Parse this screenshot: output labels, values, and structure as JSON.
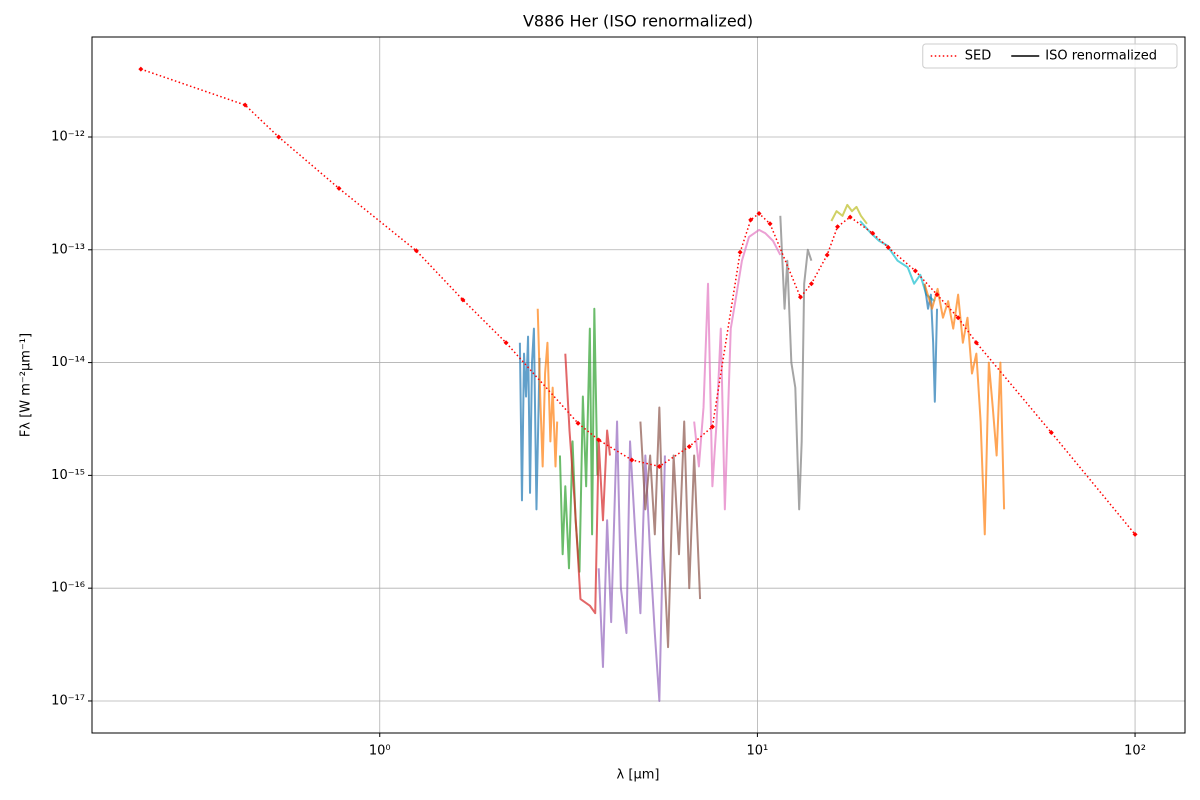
{
  "chart_data": {
    "type": "line",
    "title": "V886 Her (ISO renormalized)",
    "x_label": "λ [μm]",
    "y_label": "Fλ [W m⁻²μm⁻¹]",
    "x_scale": "log",
    "y_scale": "log",
    "grid": true,
    "legend_loc": "upper right",
    "xlim": [
      0.173,
      135.6
    ],
    "ylim": [
      5.2e-18,
      7.7e-12
    ],
    "xticks": [
      {
        "value": 1,
        "label": "10⁰"
      },
      {
        "value": 10,
        "label": "10¹"
      },
      {
        "value": 100,
        "label": "10²"
      }
    ],
    "yticks": [
      {
        "value": 1e-17,
        "label": "10⁻¹⁷"
      },
      {
        "value": 1e-16,
        "label": "10⁻¹⁶"
      },
      {
        "value": 1e-15,
        "label": "10⁻¹⁵"
      },
      {
        "value": 1e-14,
        "label": "10⁻¹⁴"
      },
      {
        "value": 1e-13,
        "label": "10⁻¹³"
      },
      {
        "value": 1e-12,
        "label": "10⁻¹²"
      }
    ],
    "series": [
      {
        "name": "SED",
        "color": "#ff0000",
        "style": "dotted",
        "x": [
          0.233,
          0.44,
          0.54,
          0.78,
          1.25,
          1.66,
          2.16,
          3.35,
          3.8,
          4.65,
          5.5,
          6.6,
          7.6,
          9.0,
          9.6,
          10.1,
          10.8,
          13.0,
          13.9,
          15.3,
          16.3,
          17.6,
          20.2,
          22.2,
          26.2,
          29.9,
          34.0,
          38.0,
          60,
          100
        ],
        "values": [
          4e-12,
          1.92e-12,
          1e-12,
          3.5e-13,
          9.8e-14,
          3.6e-14,
          1.5e-14,
          2.9e-15,
          2.06e-15,
          1.37e-15,
          1.2e-15,
          1.8e-15,
          2.7e-15,
          9.5e-14,
          1.84e-13,
          2.1e-13,
          1.7e-13,
          3.8e-14,
          5e-14,
          9e-14,
          1.6e-13,
          1.95e-13,
          1.4e-13,
          1.05e-13,
          6.5e-14,
          4e-14,
          2.5e-14,
          1.5e-14,
          2.4e-15,
          3e-16
        ]
      },
      {
        "name": "ISO renormalized",
        "color": "#000000",
        "style": "solid",
        "x": [],
        "values": []
      }
    ],
    "segments": [
      {
        "color": "#1f77b4",
        "x": [
          2.35,
          2.38,
          2.41,
          2.44,
          2.47,
          2.5,
          2.53,
          2.56,
          2.6,
          2.65
        ],
        "values": [
          1.5e-14,
          6e-16,
          1.2e-14,
          5e-15,
          1.7e-14,
          7e-16,
          1e-14,
          2e-14,
          5e-16,
          1.1e-14
        ]
      },
      {
        "color": "#ff7f0e",
        "x": [
          2.62,
          2.66,
          2.7,
          2.74,
          2.78,
          2.83,
          2.87,
          2.92,
          2.95
        ],
        "values": [
          3e-14,
          5e-15,
          1.2e-15,
          8e-15,
          1.5e-14,
          2e-15,
          6e-15,
          1.2e-15,
          3e-15
        ]
      },
      {
        "color": "#2ca02c",
        "x": [
          3.0,
          3.05,
          3.1,
          3.17,
          3.24,
          3.3,
          3.38,
          3.45,
          3.52,
          3.6,
          3.65,
          3.7,
          3.77
        ],
        "values": [
          1.5e-15,
          2e-16,
          8e-16,
          1.5e-16,
          2e-15,
          4e-16,
          1.4e-16,
          5e-15,
          8e-16,
          2e-14,
          3e-16,
          3e-14,
          1e-15
        ]
      },
      {
        "color": "#d62728",
        "x": [
          3.1,
          3.18,
          3.28,
          3.4,
          3.6,
          3.72,
          3.8,
          3.9,
          4.0,
          4.07
        ],
        "values": [
          1.2e-14,
          2.5e-15,
          6e-16,
          8e-17,
          7e-17,
          6e-17,
          2e-15,
          4e-16,
          2.5e-15,
          1.5e-15
        ]
      },
      {
        "color": "#9467bd",
        "x": [
          3.8,
          3.9,
          4.0,
          4.1,
          4.25,
          4.35,
          4.5,
          4.6,
          4.75,
          4.9,
          5.05,
          5.2,
          5.35,
          5.5,
          5.69
        ],
        "values": [
          1.5e-16,
          2e-17,
          4e-16,
          5e-17,
          3e-15,
          1e-16,
          4e-17,
          2e-15,
          3e-16,
          6e-17,
          1.5e-15,
          2e-16,
          4e-17,
          1e-17,
          1.5e-15
        ]
      },
      {
        "color": "#8c564b",
        "x": [
          4.9,
          5.05,
          5.2,
          5.35,
          5.5,
          5.65,
          5.8,
          6.0,
          6.2,
          6.4,
          6.6,
          6.8,
          7.05
        ],
        "values": [
          3e-15,
          5e-16,
          1.5e-15,
          3e-16,
          4e-15,
          2e-16,
          3e-17,
          1.5e-15,
          2e-16,
          3e-15,
          1e-16,
          1.5e-15,
          8e-17
        ]
      },
      {
        "color": "#e377c2",
        "x": [
          6.8,
          7.0,
          7.2,
          7.4,
          7.6,
          7.8,
          8.0,
          8.2,
          8.5,
          8.8,
          9.1,
          9.5,
          10.1,
          10.5,
          11.0,
          11.5
        ],
        "values": [
          3e-15,
          1.2e-15,
          4e-15,
          5e-14,
          8e-16,
          3e-15,
          2e-14,
          5e-16,
          2e-14,
          4e-14,
          8e-14,
          1.3e-13,
          1.5e-13,
          1.4e-13,
          1.2e-13,
          9e-14
        ]
      },
      {
        "color": "#7f7f7f",
        "x": [
          11.5,
          11.8,
          12.0,
          12.3,
          12.6,
          12.9,
          13.1,
          13.3,
          13.6,
          13.9
        ],
        "values": [
          2e-13,
          3e-14,
          8e-14,
          1e-14,
          6e-15,
          5e-16,
          2e-15,
          5e-14,
          1e-13,
          8e-14
        ]
      },
      {
        "color": "#bcbd22",
        "x": [
          15.7,
          16.2,
          16.8,
          17.3,
          17.8,
          18.3,
          18.8,
          19.5
        ],
        "values": [
          1.8e-13,
          2.2e-13,
          2e-13,
          2.5e-13,
          2.2e-13,
          2.4e-13,
          2e-13,
          1.7e-13
        ]
      },
      {
        "color": "#17becf",
        "x": [
          18.7,
          20,
          21,
          22,
          23.5,
          25,
          26,
          27,
          28,
          29.5
        ],
        "values": [
          1.8e-13,
          1.4e-13,
          1.2e-13,
          1.1e-13,
          8e-14,
          7e-14,
          5e-14,
          6e-14,
          4e-14,
          3.5e-14
        ]
      },
      {
        "color": "#1f77b4",
        "x": [
          27.7,
          28.3,
          28.8,
          29.2,
          29.5,
          29.9
        ],
        "values": [
          5e-14,
          3e-14,
          4e-14,
          1.5e-14,
          4.5e-15,
          3e-14
        ]
      },
      {
        "color": "#ff7f0e",
        "x": [
          27.7,
          29,
          30,
          31,
          32,
          33,
          34,
          35,
          36,
          37,
          38,
          39,
          40,
          41,
          42,
          43,
          44,
          45
        ],
        "values": [
          5e-14,
          3e-14,
          4.5e-14,
          2.5e-14,
          3.5e-14,
          2e-14,
          4e-14,
          1.5e-14,
          2.5e-14,
          8e-15,
          1.2e-14,
          3e-15,
          3e-16,
          1e-14,
          4e-15,
          1.5e-15,
          1e-14,
          5e-16
        ]
      }
    ]
  }
}
